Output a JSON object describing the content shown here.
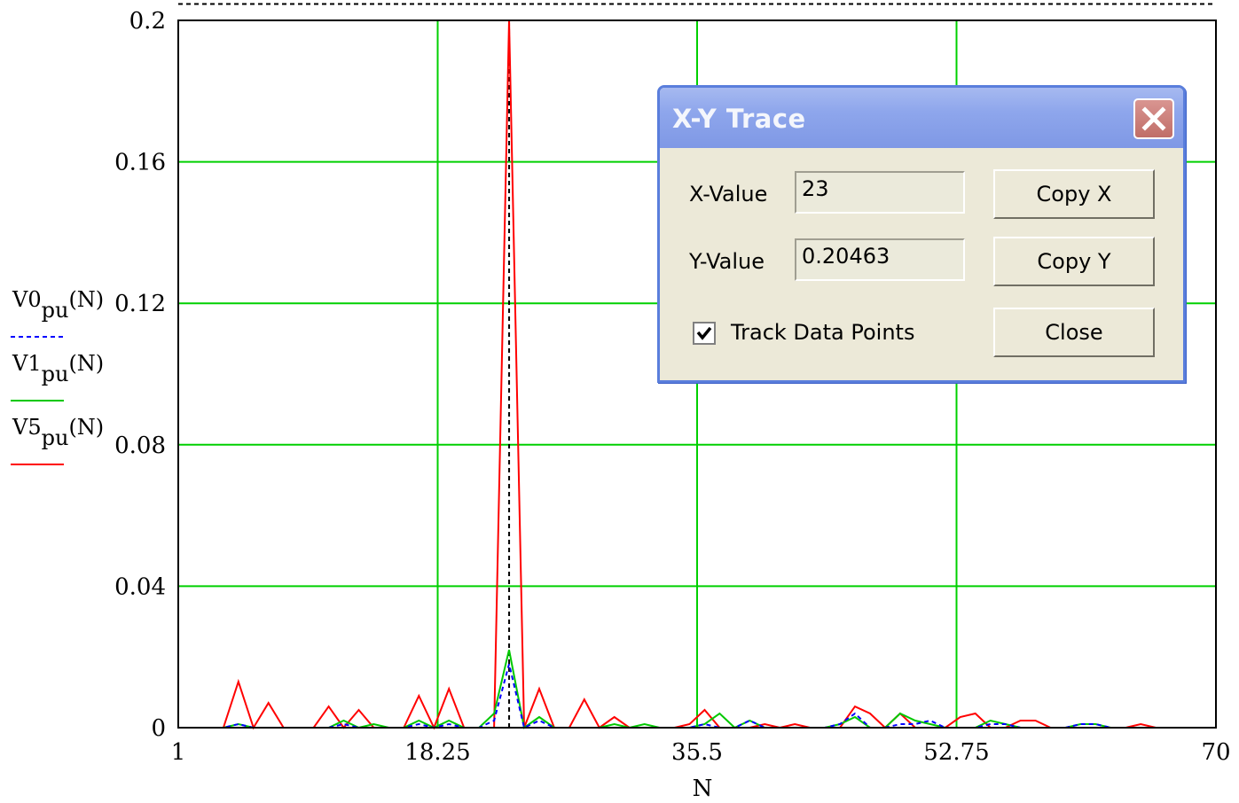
{
  "chart_data": {
    "type": "line",
    "xlabel": "N",
    "xlim": [
      1,
      70
    ],
    "ylim": [
      0,
      0.2
    ],
    "xticks": [
      "1",
      "18.25",
      "35.5",
      "52.75",
      "70"
    ],
    "yticks": [
      "0",
      "0.04",
      "0.08",
      "0.12",
      "0.16",
      "0.2"
    ],
    "grid": true,
    "legend_placement": "left",
    "legend": [
      {
        "base": "V0",
        "sub": "pu",
        "arg": "(N)"
      },
      {
        "base": "V1",
        "sub": "pu",
        "arg": "(N)"
      },
      {
        "base": "V5",
        "sub": "pu",
        "arg": "(N)"
      }
    ],
    "colors": {
      "V0": "#0000ff",
      "V1": "#00c800",
      "V5": "#ff0000",
      "grid": "#00d000"
    },
    "x": [
      1,
      2,
      3,
      4,
      5,
      6,
      7,
      8,
      9,
      10,
      11,
      12,
      13,
      14,
      15,
      16,
      17,
      18,
      19,
      20,
      21,
      22,
      23,
      24,
      25,
      26,
      27,
      28,
      29,
      30,
      31,
      32,
      33,
      34,
      35,
      36,
      37,
      38,
      39,
      40,
      41,
      42,
      43,
      44,
      45,
      46,
      47,
      48,
      49,
      50,
      51,
      52,
      53,
      54,
      55,
      56,
      57,
      58,
      59,
      60,
      61,
      62,
      63,
      64,
      65,
      66,
      67,
      68,
      69,
      70
    ],
    "series": [
      {
        "name": "V0",
        "style": "dashed",
        "values": [
          0,
          0,
          0,
          0,
          0.001,
          0,
          0,
          0,
          0,
          0,
          0,
          0.001,
          0,
          0,
          0,
          0,
          0.001,
          0,
          0.001,
          0,
          0,
          0.002,
          0.018,
          0,
          0.002,
          0,
          0,
          0,
          0,
          0,
          0,
          0,
          0,
          0,
          0,
          0.001,
          0,
          0,
          0.002,
          0,
          0,
          0,
          0,
          0,
          0.001,
          0.004,
          0,
          0,
          0.001,
          0.001,
          0.002,
          0,
          0,
          0,
          0.001,
          0.001,
          0,
          0,
          0,
          0,
          0.001,
          0.001,
          0,
          0,
          0,
          0,
          0,
          0,
          0,
          0
        ]
      },
      {
        "name": "V1",
        "style": "solid",
        "values": [
          0,
          0,
          0,
          0,
          0.001,
          0,
          0,
          0,
          0,
          0,
          0,
          0.002,
          0,
          0.001,
          0,
          0,
          0.002,
          0,
          0.002,
          0,
          0,
          0.004,
          0.022,
          0,
          0.003,
          0,
          0,
          0,
          0,
          0.001,
          0,
          0.001,
          0,
          0,
          0,
          0.001,
          0.004,
          0,
          0.002,
          0,
          0,
          0,
          0,
          0,
          0.001,
          0.003,
          0,
          0,
          0.004,
          0.002,
          0.001,
          0,
          0,
          0,
          0.002,
          0.001,
          0,
          0,
          0,
          0,
          0.001,
          0.001,
          0,
          0,
          0,
          0,
          0,
          0,
          0,
          0
        ]
      },
      {
        "name": "V5",
        "style": "solid",
        "values": [
          0,
          0,
          0,
          0,
          0.013,
          0,
          0.007,
          0,
          0,
          0,
          0.006,
          0,
          0.005,
          0,
          0,
          0,
          0.009,
          0,
          0.011,
          0,
          0,
          0,
          0.2046,
          0,
          0.011,
          0,
          0,
          0.008,
          0,
          0.003,
          0,
          0,
          0,
          0,
          0.001,
          0.005,
          0,
          0,
          0,
          0.001,
          0,
          0.001,
          0,
          0,
          0,
          0.006,
          0.004,
          0,
          0.004,
          0,
          0,
          0,
          0.003,
          0.004,
          0,
          0,
          0.002,
          0.002,
          0,
          0,
          0,
          0,
          0,
          0,
          0.001,
          0,
          0,
          0,
          0,
          0
        ]
      }
    ],
    "trace_x": 23,
    "trace_y": 0.20463
  },
  "dialog": {
    "title": "X-Y Trace",
    "x_label": "X-Value",
    "x_value": "23",
    "y_label": "Y-Value",
    "y_value": "0.20463",
    "copy_x": "Copy X",
    "copy_y": "Copy Y",
    "close": "Close",
    "track_label": "Track Data Points",
    "track_checked": true
  }
}
